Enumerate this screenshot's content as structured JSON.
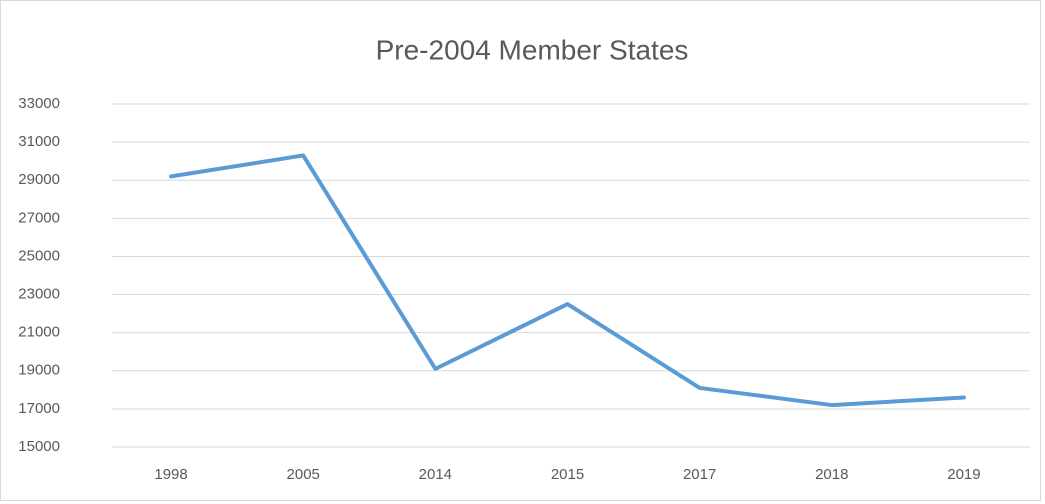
{
  "chart_data": {
    "type": "line",
    "title": "Pre-2004 Member States",
    "categories": [
      "1998",
      "2005",
      "2014",
      "2015",
      "2017",
      "2018",
      "2019"
    ],
    "series": [
      {
        "name": "Pre-2004 Member States",
        "color": "#5b9bd5",
        "values": [
          29200,
          30300,
          19100,
          22500,
          18100,
          17200,
          17600
        ]
      }
    ],
    "ylim": [
      15000,
      33000
    ],
    "yticks": [
      15000,
      17000,
      19000,
      21000,
      23000,
      25000,
      27000,
      29000,
      31000,
      33000
    ],
    "grid": true,
    "legend": false
  }
}
